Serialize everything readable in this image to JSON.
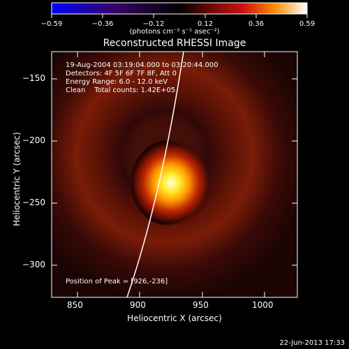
{
  "colorbar": {
    "ticks": [
      "−0.59",
      "−0.36",
      "−0.12",
      "0.12",
      "0.36",
      "0.59"
    ],
    "units": "(photons cm⁻² s⁻¹ asec⁻²)"
  },
  "plot": {
    "title": "Reconstructed RHESSI Image",
    "x_label": "Heliocentric X (arcsec)",
    "y_label": "Heliocentric Y (arcsec)",
    "x_ticks": [
      "850",
      "900",
      "950",
      "1000"
    ],
    "y_ticks": [
      "−150",
      "−200",
      "−250",
      "−300"
    ]
  },
  "info": {
    "time_range": "19-Aug-2004 03:19:04.000 to 03:20:44.000",
    "detectors": "Detectors: 4F 5F 6F 7F 8F, Att 0",
    "energy": "Energy Range: 6.0 - 12.0 keV",
    "clean": "Clean    Total counts: 1.42E+05",
    "peak": "Position of Peak = [926,-236]"
  },
  "footer": {
    "date": "22-Jun-2013 17:33"
  }
}
